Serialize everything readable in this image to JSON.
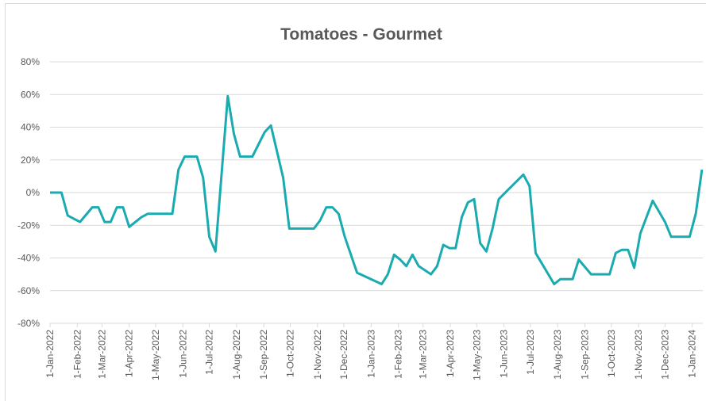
{
  "chart_data": {
    "type": "line",
    "title": "Tomatoes - Gourmet",
    "x": [
      "2022-01-01",
      "2022-01-14",
      "2022-01-21",
      "2022-02-04",
      "2022-02-18",
      "2022-02-25",
      "2022-03-04",
      "2022-03-11",
      "2022-03-18",
      "2022-03-25",
      "2022-04-01",
      "2022-04-15",
      "2022-04-22",
      "2022-05-20",
      "2022-05-27",
      "2022-06-03",
      "2022-06-17",
      "2022-06-24",
      "2022-07-01",
      "2022-07-08",
      "2022-07-22",
      "2022-07-29",
      "2022-08-05",
      "2022-08-19",
      "2022-09-02",
      "2022-09-09",
      "2022-09-23",
      "2022-09-30",
      "2022-10-28",
      "2022-11-04",
      "2022-11-11",
      "2022-11-18",
      "2022-11-25",
      "2022-12-02",
      "2022-12-16",
      "2023-01-13",
      "2023-01-20",
      "2023-01-27",
      "2023-02-03",
      "2023-02-10",
      "2023-02-17",
      "2023-02-24",
      "2023-03-10",
      "2023-03-17",
      "2023-03-24",
      "2023-03-31",
      "2023-04-07",
      "2023-04-14",
      "2023-04-21",
      "2023-04-28",
      "2023-05-05",
      "2023-05-12",
      "2023-05-19",
      "2023-05-26",
      "2023-06-23",
      "2023-06-30",
      "2023-07-07",
      "2023-07-28",
      "2023-08-04",
      "2023-08-18",
      "2023-08-25",
      "2023-09-08",
      "2023-09-29",
      "2023-10-06",
      "2023-10-13",
      "2023-10-20",
      "2023-10-27",
      "2023-11-03",
      "2023-11-17",
      "2023-12-01",
      "2023-12-08",
      "2023-12-29",
      "2024-01-05",
      "2024-01-12"
    ],
    "series": [
      {
        "name": "Tomatoes - Gourmet",
        "color": "#1aabb1",
        "values": [
          0,
          0,
          -14,
          -18,
          -9,
          -9,
          -18,
          -18,
          -9,
          -9,
          -21,
          -15,
          -13,
          -13,
          14,
          22,
          22,
          9,
          -27,
          -36,
          59,
          36,
          22,
          22,
          37,
          41,
          9,
          -22,
          -22,
          -17,
          -9,
          -9,
          -13,
          -27,
          -49,
          -56,
          -50,
          -38,
          -41,
          -45,
          -38,
          -45,
          -50,
          -45,
          -32,
          -34,
          -34,
          -15,
          -6,
          -4,
          -31,
          -36,
          -22,
          -4,
          11,
          4,
          -37,
          -56,
          -53,
          -53,
          -41,
          -50,
          -50,
          -37,
          -35,
          -35,
          -46,
          -25,
          -5,
          -18,
          -27,
          -27,
          -13,
          14
        ]
      }
    ],
    "xlim": [
      "2022-01-01",
      "2024-01-13"
    ],
    "xticks": [
      {
        "value": "2022-01-01",
        "label": "1-Jan-2022"
      },
      {
        "value": "2022-02-01",
        "label": "1-Feb-2022"
      },
      {
        "value": "2022-03-01",
        "label": "1-Mar-2022"
      },
      {
        "value": "2022-04-01",
        "label": "1-Apr-2022"
      },
      {
        "value": "2022-05-01",
        "label": "1-May-2022"
      },
      {
        "value": "2022-06-01",
        "label": "1-Jun-2022"
      },
      {
        "value": "2022-07-01",
        "label": "1-Jul-2022"
      },
      {
        "value": "2022-08-01",
        "label": "1-Aug-2022"
      },
      {
        "value": "2022-09-01",
        "label": "1-Sep-2022"
      },
      {
        "value": "2022-10-01",
        "label": "1-Oct-2022"
      },
      {
        "value": "2022-11-01",
        "label": "1-Nov-2022"
      },
      {
        "value": "2022-12-01",
        "label": "1-Dec-2022"
      },
      {
        "value": "2023-01-01",
        "label": "1-Jan-2023"
      },
      {
        "value": "2023-02-01",
        "label": "1-Feb-2023"
      },
      {
        "value": "2023-03-01",
        "label": "1-Mar-2023"
      },
      {
        "value": "2023-04-01",
        "label": "1-Apr-2023"
      },
      {
        "value": "2023-05-01",
        "label": "1-May-2023"
      },
      {
        "value": "2023-06-01",
        "label": "1-Jun-2023"
      },
      {
        "value": "2023-07-01",
        "label": "1-Jul-2023"
      },
      {
        "value": "2023-08-01",
        "label": "1-Aug-2023"
      },
      {
        "value": "2023-09-01",
        "label": "1-Sep-2023"
      },
      {
        "value": "2023-10-01",
        "label": "1-Oct-2023"
      },
      {
        "value": "2023-11-01",
        "label": "1-Nov-2023"
      },
      {
        "value": "2023-12-01",
        "label": "1-Dec-2023"
      },
      {
        "value": "2024-01-01",
        "label": "1-Jan-2024"
      }
    ],
    "ylim": [
      -80,
      80
    ],
    "yticks": [
      {
        "value": -80,
        "label": "-80%"
      },
      {
        "value": -60,
        "label": "-60%"
      },
      {
        "value": -40,
        "label": "-40%"
      },
      {
        "value": -20,
        "label": "-20%"
      },
      {
        "value": 0,
        "label": "0%"
      },
      {
        "value": 20,
        "label": "20%"
      },
      {
        "value": 40,
        "label": "40%"
      },
      {
        "value": 60,
        "label": "60%"
      },
      {
        "value": 80,
        "label": "80%"
      }
    ],
    "grid": true
  }
}
